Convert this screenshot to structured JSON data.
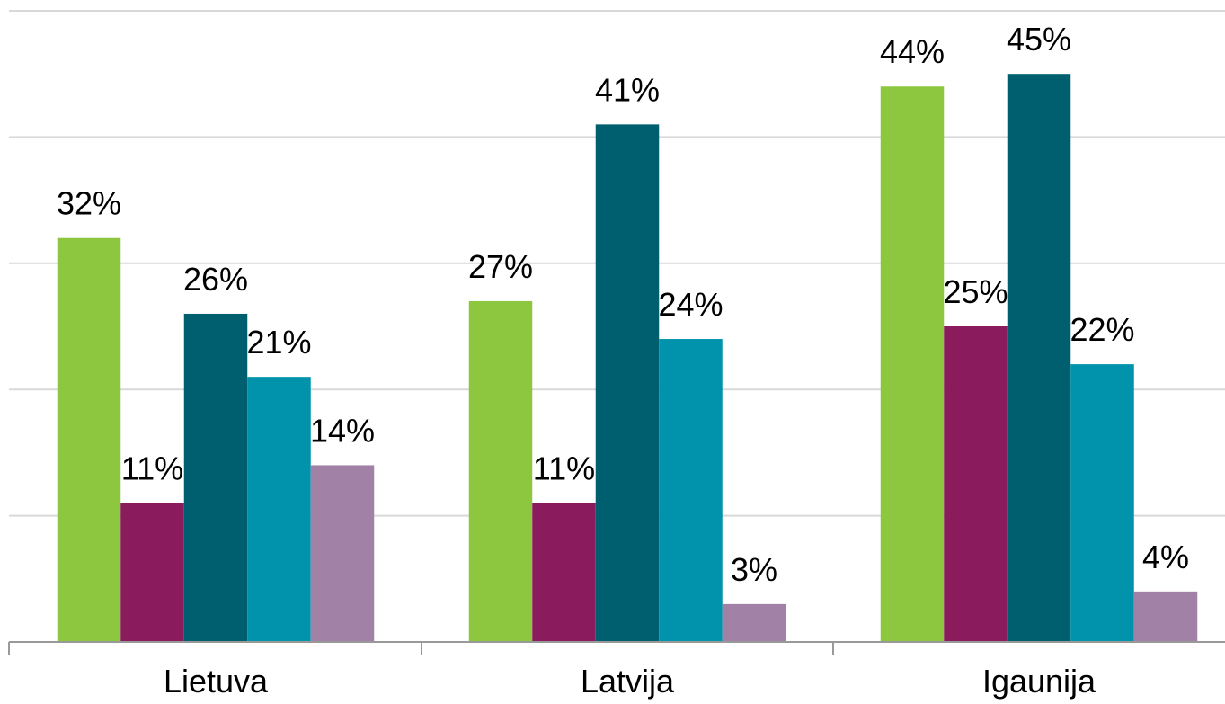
{
  "chart_data": {
    "type": "bar",
    "categories": [
      "Lietuva",
      "Latvija",
      "Igaunija"
    ],
    "series": [
      {
        "color": "#8dc63f",
        "values": [
          32,
          27,
          44
        ],
        "labels": [
          "32%",
          "27%",
          "44%"
        ]
      },
      {
        "color": "#8a1c5e",
        "values": [
          11,
          11,
          25
        ],
        "labels": [
          "11%",
          "11%",
          "25%"
        ]
      },
      {
        "color": "#005f6e",
        "values": [
          26,
          41,
          45
        ],
        "labels": [
          "26%",
          "41%",
          "45%"
        ]
      },
      {
        "color": "#0093ab",
        "values": [
          21,
          24,
          22
        ],
        "labels": [
          "21%",
          "24%",
          "22%"
        ]
      },
      {
        "color": "#a281a6",
        "values": [
          14,
          3,
          4
        ],
        "labels": [
          "14%",
          "3%",
          "4%"
        ]
      }
    ],
    "ylim": [
      0,
      50
    ],
    "grid": true,
    "legend": "none",
    "title": "",
    "xlabel": "",
    "ylabel": ""
  }
}
